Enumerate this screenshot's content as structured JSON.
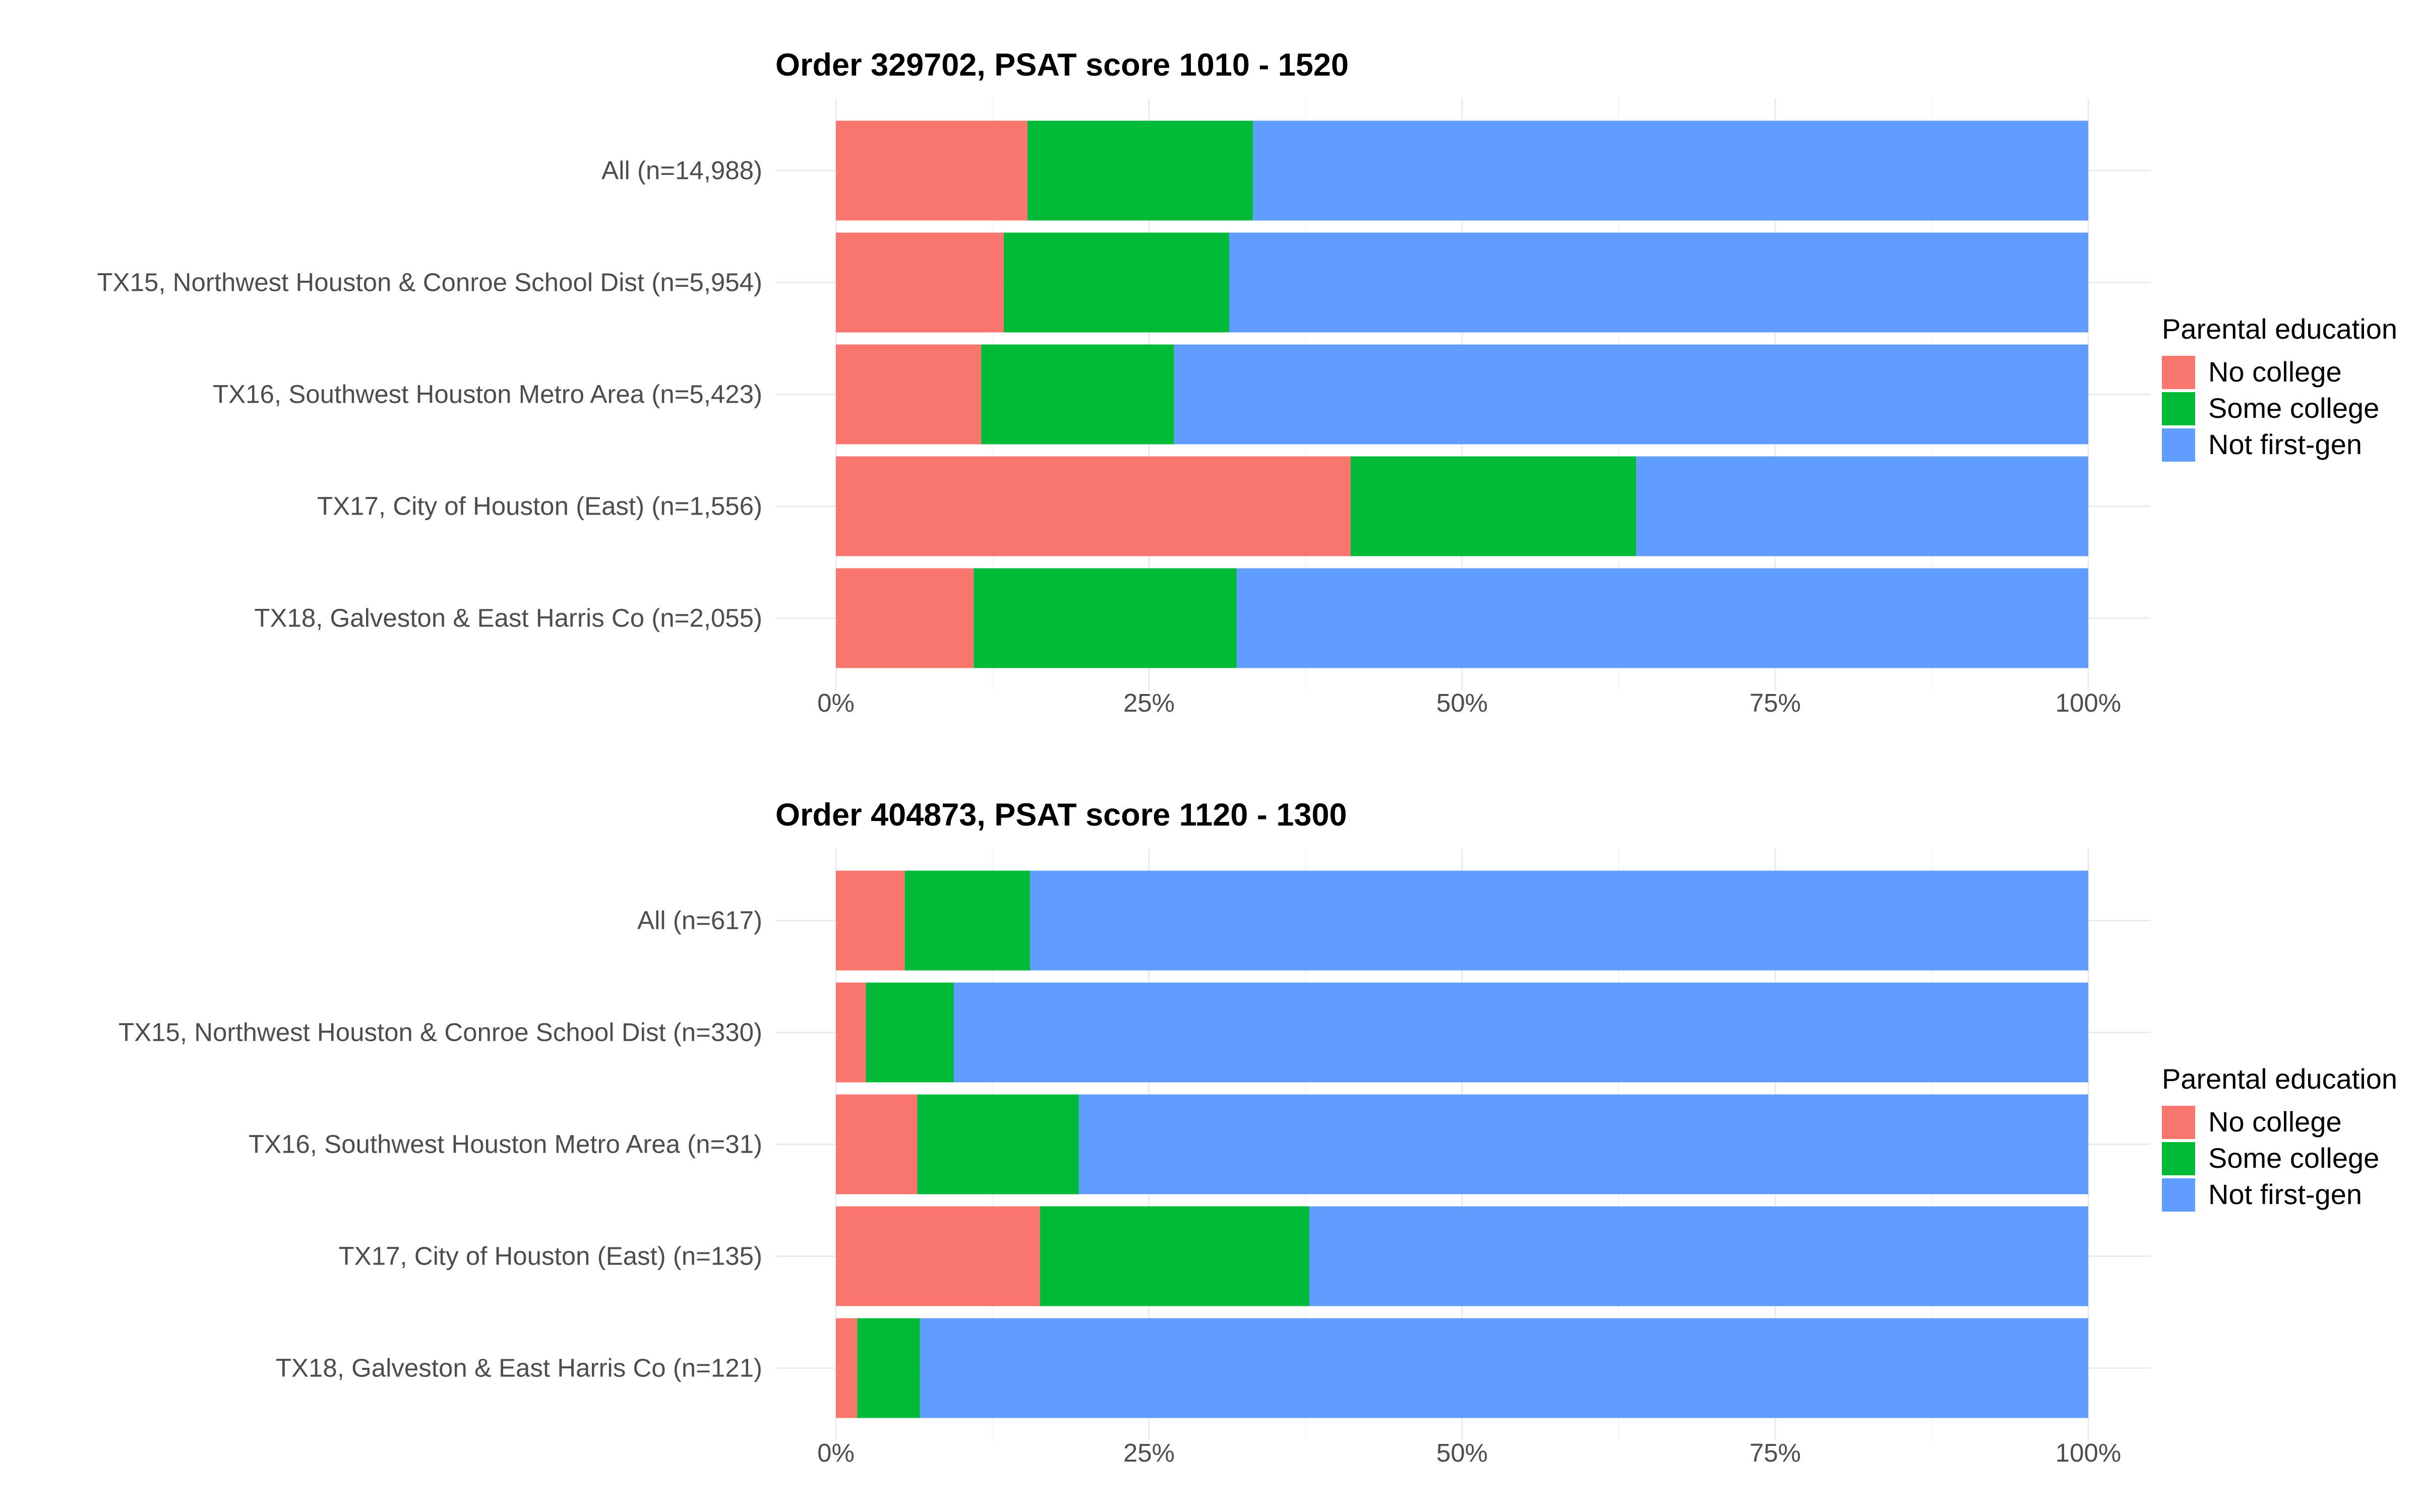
{
  "chart_data": [
    {
      "type": "bar",
      "orientation": "horizontal",
      "stacked": true,
      "percent": true,
      "title": "Order 329702, PSAT score 1010 - 1520",
      "categories": [
        "All (n=14,988)",
        "TX15, Northwest Houston & Conroe School Dist (n=5,954)",
        "TX16, Southwest Houston Metro Area (n=5,423)",
        "TX17, City of Houston (East) (n=1,556)",
        "TX18, Galveston & East Harris Co (n=2,055)"
      ],
      "series": [
        {
          "name": "No college",
          "color": "#F8766D",
          "values": [
            15.3,
            13.4,
            11.6,
            41.1,
            11.0
          ]
        },
        {
          "name": "Some college",
          "color": "#00BA38",
          "values": [
            18.0,
            18.0,
            15.4,
            22.8,
            21.0
          ]
        },
        {
          "name": "Not first-gen",
          "color": "#619CFF",
          "values": [
            66.7,
            68.6,
            73.0,
            36.1,
            68.0
          ]
        }
      ],
      "xlim": [
        0,
        100
      ],
      "xticks": [
        "0%",
        "25%",
        "50%",
        "75%",
        "100%"
      ],
      "xlabel": "",
      "ylabel": "",
      "grid": true,
      "legend_title": "Parental education",
      "legend_position": "right"
    },
    {
      "type": "bar",
      "orientation": "horizontal",
      "stacked": true,
      "percent": true,
      "title": "Order 404873, PSAT score 1120 - 1300",
      "categories": [
        "All (n=617)",
        "TX15, Northwest Houston & Conroe School Dist (n=330)",
        "TX16, Southwest Houston Metro Area (n=31)",
        "TX17, City of Houston (East) (n=135)",
        "TX18, Galveston & East Harris Co (n=121)"
      ],
      "series": [
        {
          "name": "No college",
          "color": "#F8766D",
          "values": [
            5.5,
            2.4,
            6.5,
            16.3,
            1.7
          ]
        },
        {
          "name": "Some college",
          "color": "#00BA38",
          "values": [
            10.0,
            7.0,
            12.9,
            21.5,
            5.0
          ]
        },
        {
          "name": "Not first-gen",
          "color": "#619CFF",
          "values": [
            84.5,
            90.6,
            80.6,
            62.2,
            93.3
          ]
        }
      ],
      "xlim": [
        0,
        100
      ],
      "xticks": [
        "0%",
        "25%",
        "50%",
        "75%",
        "100%"
      ],
      "xlabel": "",
      "ylabel": "",
      "grid": true,
      "legend_title": "Parental education",
      "legend_position": "right"
    }
  ]
}
